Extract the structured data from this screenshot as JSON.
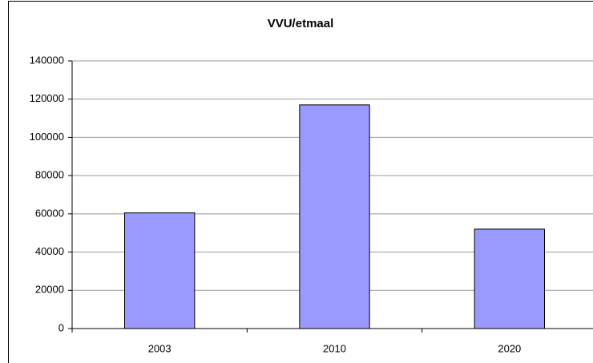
{
  "chart_data": {
    "type": "bar",
    "title": "VVU/etmaal",
    "categories": [
      "2003",
      "2010",
      "2020"
    ],
    "values": [
      60500,
      117000,
      52000
    ],
    "color": "#9999ff",
    "ylim": [
      0,
      140000
    ],
    "yticks": [
      0,
      20000,
      40000,
      60000,
      80000,
      100000,
      120000,
      140000
    ],
    "grid": true
  }
}
